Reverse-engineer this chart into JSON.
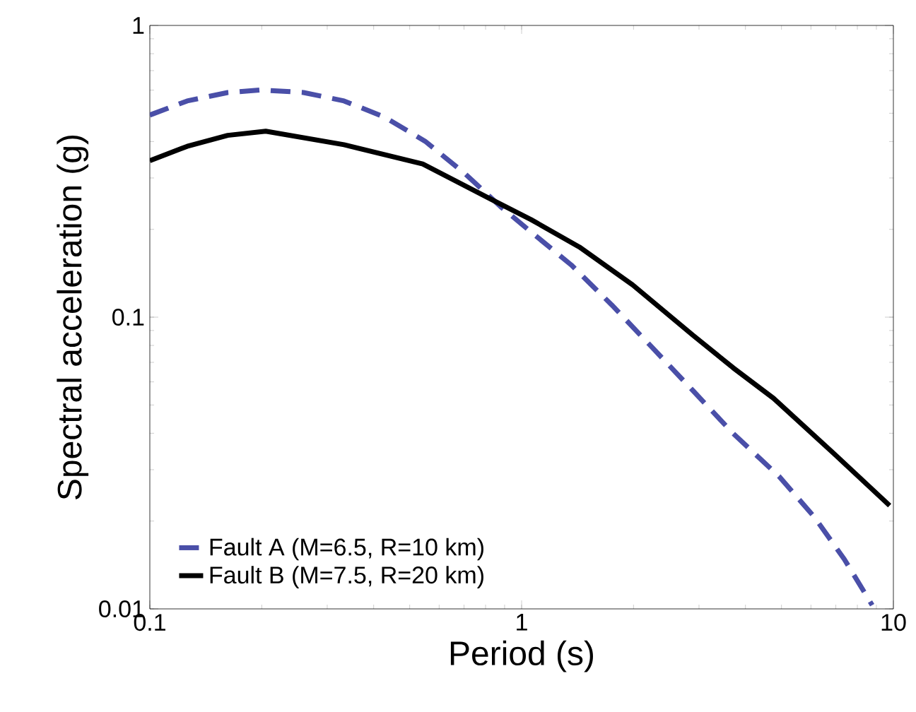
{
  "chart_data": {
    "type": "line",
    "xlabel": "Period (s)",
    "ylabel": "Spectral acceleration (g)",
    "log": "xy",
    "xlim": [
      0.1,
      10
    ],
    "ylim": [
      0.01,
      1
    ],
    "xticks": [
      0.1,
      1,
      10
    ],
    "yticks": [
      0.01,
      0.1,
      1
    ],
    "grid": false,
    "legend": "bottom left",
    "series": [
      {
        "name": "Fault A (M=6.5, R=10 km)",
        "color": "#4a4fa8",
        "line_style": "dashed",
        "x": [
          0.1,
          0.126,
          0.162,
          0.199,
          0.259,
          0.333,
          0.428,
          0.55,
          0.707,
          0.879,
          1.06,
          1.36,
          1.75,
          2.25,
          2.89,
          3.71,
          4.92,
          6.12,
          7.38,
          8.77
        ],
        "values": [
          0.493,
          0.551,
          0.589,
          0.601,
          0.589,
          0.551,
          0.485,
          0.401,
          0.309,
          0.239,
          0.196,
          0.151,
          0.11,
          0.0785,
          0.056,
          0.0399,
          0.0285,
          0.0207,
          0.0148,
          0.0103
        ]
      },
      {
        "name": "Fault B (M=7.5, R=20 km)",
        "color": "#000000",
        "line_style": "solid",
        "x": [
          0.1,
          0.126,
          0.162,
          0.205,
          0.333,
          0.542,
          0.826,
          1.06,
          1.43,
          1.99,
          2.89,
          3.71,
          4.76,
          6.93,
          9.77
        ],
        "values": [
          0.344,
          0.385,
          0.42,
          0.434,
          0.39,
          0.335,
          0.254,
          0.216,
          0.174,
          0.129,
          0.0867,
          0.067,
          0.0527,
          0.034,
          0.0226
        ]
      }
    ]
  }
}
